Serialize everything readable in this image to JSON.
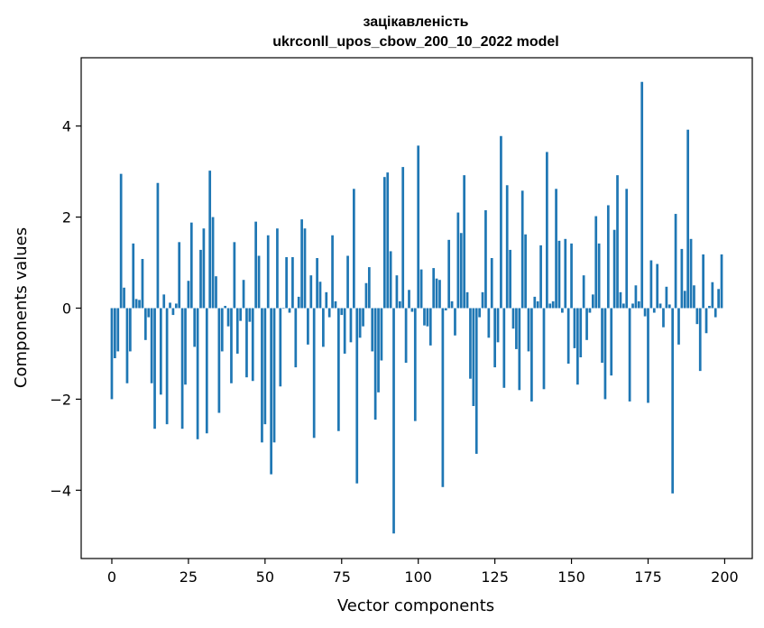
{
  "chart_data": {
    "type": "bar",
    "title": "зацікавленість",
    "subtitle": "ukrconll_upos_cbow_200_10_2022 model",
    "xlabel": "Vector components",
    "ylabel": "Components values",
    "xlim": [
      -10,
      209
    ],
    "ylim": [
      -5.5,
      5.5
    ],
    "xticks": [
      0,
      25,
      50,
      75,
      100,
      125,
      150,
      175,
      200
    ],
    "xtick_labels": [
      "0",
      "25",
      "50",
      "75",
      "100",
      "125",
      "150",
      "175",
      "200"
    ],
    "yticks": [
      -4,
      -2,
      0,
      2,
      4
    ],
    "ytick_labels": [
      "−4",
      "−2",
      "0",
      "2",
      "4"
    ],
    "grid": false,
    "bar_color": "#1f77b4",
    "x": [
      0,
      1,
      2,
      3,
      4,
      5,
      6,
      7,
      8,
      9,
      10,
      11,
      12,
      13,
      14,
      15,
      16,
      17,
      18,
      19,
      20,
      21,
      22,
      23,
      24,
      25,
      26,
      27,
      28,
      29,
      30,
      31,
      32,
      33,
      34,
      35,
      36,
      37,
      38,
      39,
      40,
      41,
      42,
      43,
      44,
      45,
      46,
      47,
      48,
      49,
      50,
      51,
      52,
      53,
      54,
      55,
      56,
      57,
      58,
      59,
      60,
      61,
      62,
      63,
      64,
      65,
      66,
      67,
      68,
      69,
      70,
      71,
      72,
      73,
      74,
      75,
      76,
      77,
      78,
      79,
      80,
      81,
      82,
      83,
      84,
      85,
      86,
      87,
      88,
      89,
      90,
      91,
      92,
      93,
      94,
      95,
      96,
      97,
      98,
      99,
      100,
      101,
      102,
      103,
      104,
      105,
      106,
      107,
      108,
      109,
      110,
      111,
      112,
      113,
      114,
      115,
      116,
      117,
      118,
      119,
      120,
      121,
      122,
      123,
      124,
      125,
      126,
      127,
      128,
      129,
      130,
      131,
      132,
      133,
      134,
      135,
      136,
      137,
      138,
      139,
      140,
      141,
      142,
      143,
      144,
      145,
      146,
      147,
      148,
      149,
      150,
      151,
      152,
      153,
      154,
      155,
      156,
      157,
      158,
      159,
      160,
      161,
      162,
      163,
      164,
      165,
      166,
      167,
      168,
      169,
      170,
      171,
      172,
      173,
      174,
      175,
      176,
      177,
      178,
      179,
      180,
      181,
      182,
      183,
      184,
      185,
      186,
      187,
      188,
      189,
      190,
      191,
      192,
      193,
      194,
      195,
      196,
      197,
      198,
      199
    ],
    "values": [
      -2.0,
      -1.1,
      -0.95,
      2.95,
      0.45,
      -1.65,
      -0.95,
      1.42,
      0.2,
      0.18,
      1.08,
      -0.7,
      -0.2,
      -1.65,
      -2.65,
      2.75,
      -1.9,
      0.3,
      -2.55,
      0.12,
      -0.15,
      0.1,
      1.45,
      -2.65,
      -1.68,
      0.6,
      1.88,
      -0.85,
      -2.88,
      1.28,
      1.75,
      -2.75,
      3.02,
      2.0,
      0.7,
      -2.3,
      -0.95,
      0.05,
      -0.4,
      -1.65,
      1.45,
      -1.0,
      -0.28,
      0.62,
      -1.52,
      -0.3,
      -1.6,
      1.9,
      1.15,
      -2.95,
      -2.55,
      1.6,
      -3.65,
      -2.95,
      1.75,
      -1.72,
      0.0,
      1.12,
      -0.1,
      1.12,
      -1.3,
      0.25,
      1.95,
      1.75,
      -0.8,
      0.72,
      -2.85,
      1.1,
      0.58,
      -0.85,
      0.35,
      -0.2,
      1.6,
      0.15,
      -2.7,
      -0.15,
      -1.0,
      1.15,
      -0.75,
      2.62,
      -3.85,
      -0.65,
      -0.4,
      0.55,
      0.9,
      -0.95,
      -2.45,
      -1.85,
      -1.15,
      2.88,
      2.98,
      1.25,
      -4.95,
      0.72,
      0.15,
      3.1,
      -1.2,
      0.4,
      -0.08,
      -2.48,
      3.57,
      0.85,
      -0.38,
      -0.4,
      -0.82,
      0.88,
      0.65,
      0.62,
      -3.93,
      -0.05,
      1.5,
      0.15,
      -0.6,
      2.1,
      1.65,
      2.92,
      0.35,
      -1.55,
      -2.15,
      -3.2,
      -0.2,
      0.35,
      2.15,
      -0.65,
      1.1,
      -1.3,
      -0.75,
      3.78,
      -1.75,
      2.7,
      1.28,
      -0.45,
      -0.9,
      -1.8,
      2.58,
      1.62,
      -0.95,
      -2.05,
      0.25,
      0.15,
      1.38,
      -1.78,
      3.43,
      0.1,
      0.15,
      2.62,
      1.48,
      -0.1,
      1.52,
      -1.22,
      1.42,
      -0.88,
      -1.68,
      -1.08,
      0.72,
      -0.7,
      -0.1,
      0.3,
      2.02,
      1.42,
      -1.2,
      -2.0,
      2.26,
      -1.48,
      1.72,
      2.92,
      0.35,
      0.1,
      2.62,
      -2.05,
      0.1,
      0.5,
      0.15,
      4.97,
      -0.18,
      -2.08,
      1.05,
      -0.1,
      0.97,
      0.1,
      -0.42,
      0.47,
      0.08,
      -4.07,
      2.07,
      -0.8,
      1.3,
      0.38,
      3.92,
      1.52,
      0.5,
      -0.35,
      -1.38,
      1.18,
      -0.55,
      0.05,
      0.57,
      -0.2,
      0.42,
      1.18
    ]
  }
}
